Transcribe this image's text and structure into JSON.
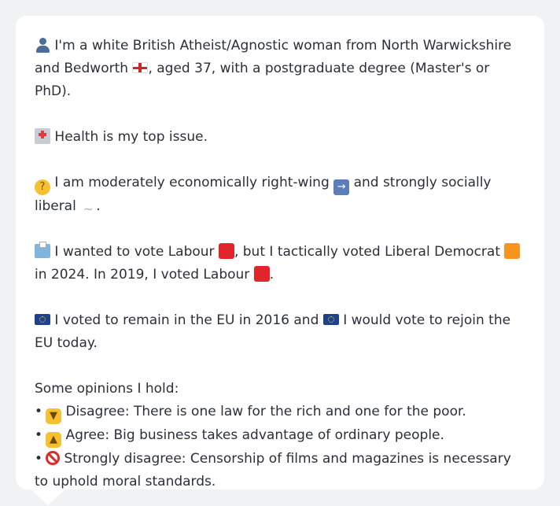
{
  "profile": {
    "intro_part1": "I'm a white British Atheist/Agnostic woman from North Warwickshire and Bedworth",
    "intro_part2": ", aged 37, with a postgraduate degree (Master's or PhD).",
    "top_issue": "Health is my top issue.",
    "economic_part1": "I am moderately economically right-wing",
    "economic_part2": "and strongly socially liberal",
    "economic_part3": ".",
    "vote_part1": "I wanted to vote Labour",
    "vote_part2": ", but I tactically voted Liberal Democrat",
    "vote_part3": "in 2024. In 2019, I voted Labour",
    "vote_part4": ".",
    "eu_part1": "I voted to remain in the EU in 2016 and",
    "eu_part2": "I would vote to rejoin the EU today.",
    "opinions_heading": "Some opinions I hold:",
    "opinions": [
      {
        "bullet": "•",
        "text": "Disagree: There is one law for the rich and one for the poor."
      },
      {
        "bullet": "•",
        "text": "Agree: Big business takes advantage of ordinary people."
      },
      {
        "bullet": "•",
        "text": "Strongly disagree: Censorship of films and magazines is necessary to uphold moral standards."
      }
    ]
  },
  "colors": {
    "labour": "#e0262b",
    "libdem": "#f7941d",
    "background": "#f1f2f4",
    "card": "#ffffff",
    "text": "#2b2f3a"
  },
  "icons": [
    "person-icon",
    "england-flag-icon",
    "hospital-icon",
    "thinking-face-icon",
    "right-arrow-icon",
    "dove-icon",
    "ballot-box-icon",
    "labour-red-square-icon",
    "libdem-orange-square-icon",
    "eu-flag-icon",
    "thumbs-down-icon",
    "thumbs-up-icon",
    "no-entry-icon"
  ]
}
